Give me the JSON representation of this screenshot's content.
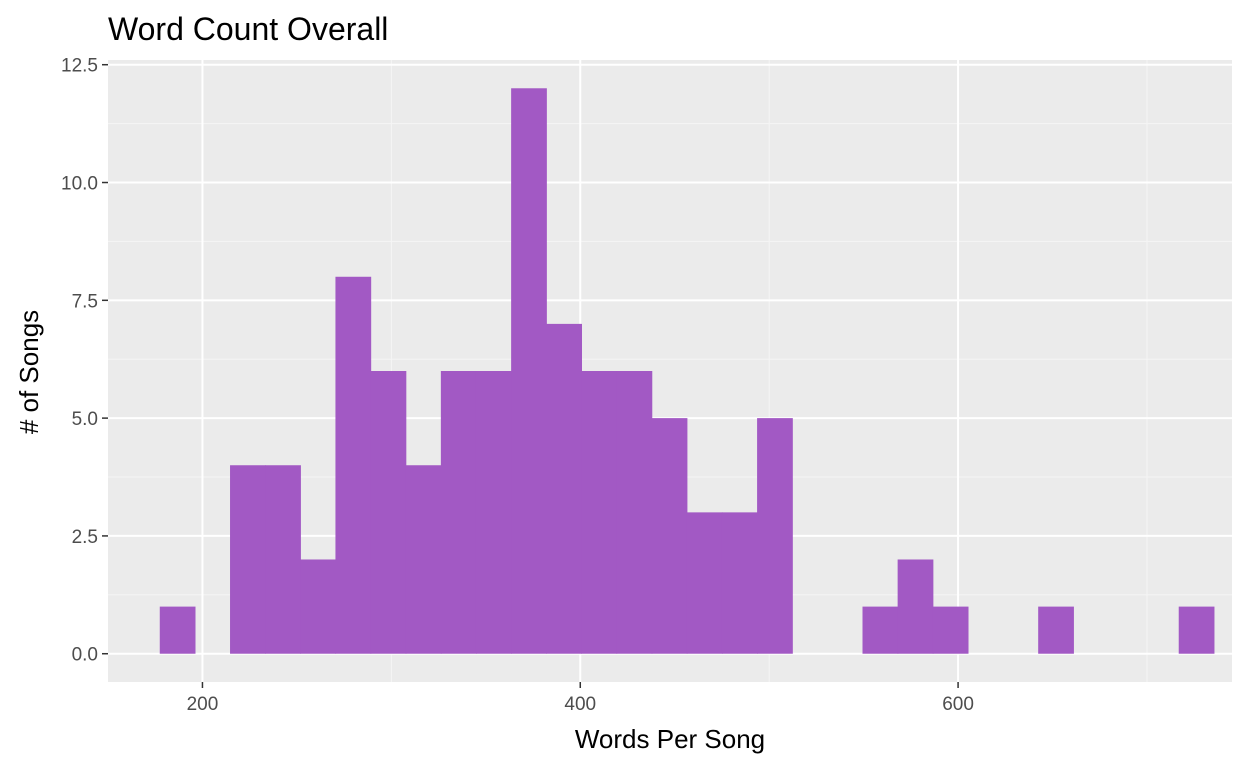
{
  "chart_data": {
    "type": "bar",
    "title": "Word Count Overall",
    "xlabel": "Words Per Song",
    "ylabel": "# of Songs",
    "xlim": [
      150,
      745
    ],
    "ylim": [
      -0.6,
      12.6
    ],
    "x_ticks": [
      200,
      400,
      600
    ],
    "x_tick_labels": [
      "200",
      "400",
      "600"
    ],
    "y_ticks": [
      0,
      2.5,
      5,
      7.5,
      10,
      12.5
    ],
    "y_tick_labels": [
      "0.0",
      "2.5",
      "5.0",
      "7.5",
      "10.0",
      "12.5"
    ],
    "grid": true,
    "bin_width": 18.6,
    "bins": [
      {
        "x_start": 177.4,
        "count": 1
      },
      {
        "x_start": 196.0,
        "count": 0
      },
      {
        "x_start": 214.6,
        "count": 4
      },
      {
        "x_start": 233.2,
        "count": 4
      },
      {
        "x_start": 251.8,
        "count": 2
      },
      {
        "x_start": 270.4,
        "count": 8
      },
      {
        "x_start": 289.0,
        "count": 6
      },
      {
        "x_start": 307.6,
        "count": 4
      },
      {
        "x_start": 326.2,
        "count": 6
      },
      {
        "x_start": 344.8,
        "count": 6
      },
      {
        "x_start": 363.4,
        "count": 12
      },
      {
        "x_start": 382.0,
        "count": 7
      },
      {
        "x_start": 400.6,
        "count": 6
      },
      {
        "x_start": 419.2,
        "count": 6
      },
      {
        "x_start": 437.8,
        "count": 5
      },
      {
        "x_start": 456.4,
        "count": 3
      },
      {
        "x_start": 475.0,
        "count": 3
      },
      {
        "x_start": 493.6,
        "count": 5
      },
      {
        "x_start": 512.2,
        "count": 0
      },
      {
        "x_start": 530.8,
        "count": 0
      },
      {
        "x_start": 549.4,
        "count": 1
      },
      {
        "x_start": 568.0,
        "count": 2
      },
      {
        "x_start": 586.6,
        "count": 1
      },
      {
        "x_start": 605.2,
        "count": 0
      },
      {
        "x_start": 623.8,
        "count": 0
      },
      {
        "x_start": 642.4,
        "count": 1
      },
      {
        "x_start": 661.0,
        "count": 0
      },
      {
        "x_start": 679.6,
        "count": 0
      },
      {
        "x_start": 698.2,
        "count": 0
      },
      {
        "x_start": 716.8,
        "count": 1
      }
    ],
    "colors": {
      "bar": "#a259c4",
      "panel": "#ebebeb",
      "grid_major": "#ffffff",
      "grid_minor": "#f5f5f5",
      "tick": "#333333"
    }
  }
}
